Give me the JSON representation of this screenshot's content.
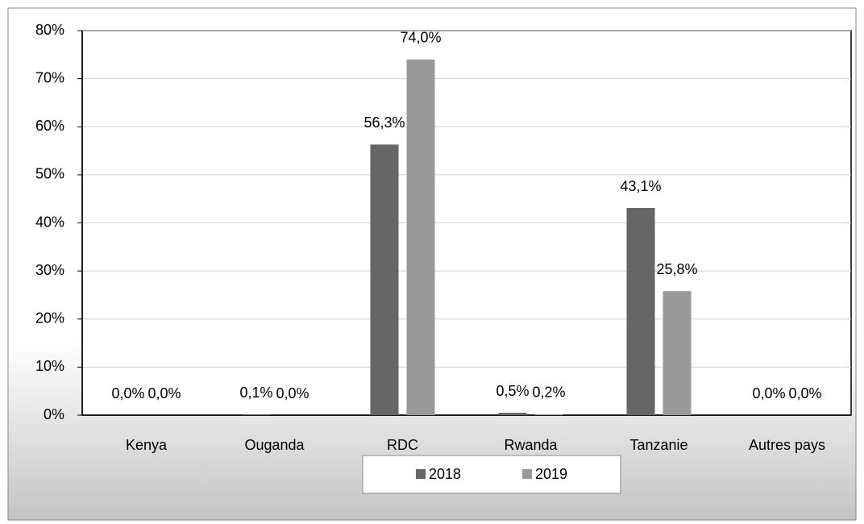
{
  "chart_data": {
    "type": "bar",
    "categories": [
      "Kenya",
      "Ouganda",
      "RDC",
      "Rwanda",
      "Tanzanie",
      "Autres pays"
    ],
    "series": [
      {
        "name": "2018",
        "color": "#666666",
        "values": [
          0.0,
          0.1,
          56.3,
          0.5,
          43.1,
          0.0
        ],
        "value_labels": [
          "0,0%",
          "0,1%",
          "56,3%",
          "0,5%",
          "43,1%",
          "0,0%"
        ]
      },
      {
        "name": "2019",
        "color": "#999999",
        "values": [
          0.0,
          0.0,
          74.0,
          0.2,
          25.8,
          0.0
        ],
        "value_labels": [
          "0,0%",
          "0,0%",
          "74,0%",
          "0,2%",
          "25,8%",
          "0,0%"
        ]
      }
    ],
    "ylim": [
      0,
      80
    ],
    "yticks": [
      {
        "value": 0,
        "label": "0%"
      },
      {
        "value": 10,
        "label": "10%"
      },
      {
        "value": 20,
        "label": "20%"
      },
      {
        "value": 30,
        "label": "30%"
      },
      {
        "value": 40,
        "label": "40%"
      },
      {
        "value": 50,
        "label": "50%"
      },
      {
        "value": 60,
        "label": "60%"
      },
      {
        "value": 70,
        "label": "70%"
      },
      {
        "value": 80,
        "label": "80%"
      }
    ],
    "grid": true,
    "legend": "bottom"
  }
}
